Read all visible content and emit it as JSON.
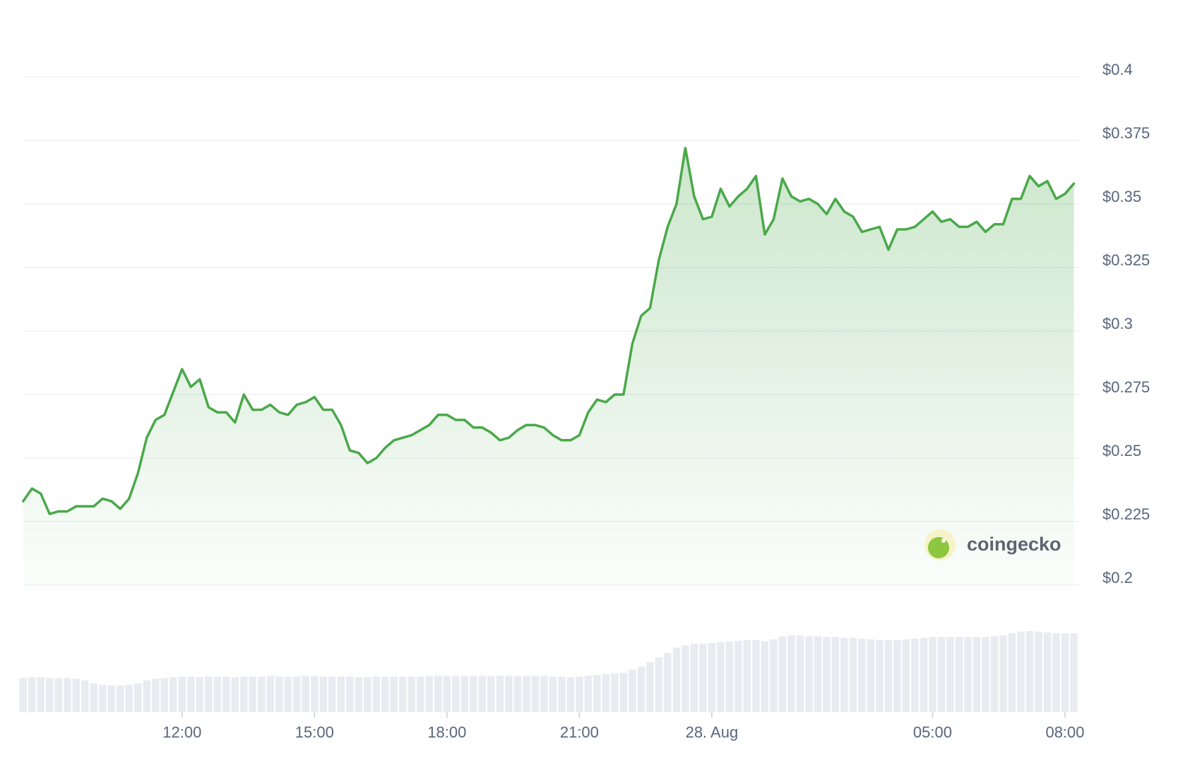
{
  "chart_data": {
    "type": "area-line",
    "color": "#4aa84a",
    "x": [
      8.4,
      8.6,
      8.8,
      9.0,
      9.2,
      9.4,
      9.6,
      9.8,
      10.0,
      10.2,
      10.4,
      10.6,
      10.8,
      11.0,
      11.2,
      11.4,
      11.6,
      11.8,
      12.0,
      12.2,
      12.4,
      12.6,
      12.8,
      13.0,
      13.2,
      13.4,
      13.6,
      13.8,
      14.0,
      14.2,
      14.4,
      14.6,
      14.8,
      15.0,
      15.2,
      15.4,
      15.6,
      15.8,
      16.0,
      16.2,
      16.4,
      16.6,
      16.8,
      17.0,
      17.2,
      17.4,
      17.6,
      17.8,
      18.0,
      18.2,
      18.4,
      18.6,
      18.8,
      19.0,
      19.2,
      19.4,
      19.6,
      19.8,
      20.0,
      20.2,
      20.4,
      20.6,
      20.8,
      21.0,
      21.2,
      21.4,
      21.6,
      21.8,
      22.0,
      22.2,
      22.4,
      22.6,
      22.8,
      23.0,
      23.2,
      23.4,
      23.6,
      23.8,
      24.0,
      24.2,
      24.4,
      24.6,
      24.8,
      25.0,
      25.2,
      25.4,
      25.6,
      25.8,
      26.0,
      26.2,
      26.4,
      26.6,
      26.8,
      27.0,
      27.2,
      27.4,
      27.6,
      27.8,
      28.0,
      28.2,
      28.4,
      28.6,
      28.8,
      29.0,
      29.2,
      29.4,
      29.6,
      29.8,
      30.0,
      30.2,
      30.4,
      30.6,
      30.8,
      31.0,
      31.2,
      31.4,
      31.6,
      31.8,
      32.0,
      32.2
    ],
    "values": [
      0.233,
      0.238,
      0.236,
      0.228,
      0.229,
      0.229,
      0.231,
      0.231,
      0.231,
      0.234,
      0.233,
      0.23,
      0.234,
      0.244,
      0.258,
      0.265,
      0.267,
      0.276,
      0.285,
      0.278,
      0.281,
      0.27,
      0.268,
      0.268,
      0.264,
      0.275,
      0.269,
      0.269,
      0.271,
      0.268,
      0.267,
      0.271,
      0.272,
      0.274,
      0.269,
      0.269,
      0.263,
      0.253,
      0.252,
      0.248,
      0.25,
      0.254,
      0.257,
      0.258,
      0.259,
      0.261,
      0.263,
      0.267,
      0.267,
      0.265,
      0.265,
      0.262,
      0.262,
      0.26,
      0.257,
      0.258,
      0.261,
      0.263,
      0.263,
      0.262,
      0.259,
      0.257,
      0.257,
      0.259,
      0.268,
      0.273,
      0.272,
      0.275,
      0.275,
      0.295,
      0.306,
      0.309,
      0.328,
      0.341,
      0.35,
      0.372,
      0.353,
      0.344,
      0.345,
      0.356,
      0.349,
      0.353,
      0.356,
      0.361,
      0.338,
      0.344,
      0.36,
      0.353,
      0.351,
      0.352,
      0.35,
      0.346,
      0.352,
      0.347,
      0.345,
      0.339,
      0.34,
      0.341,
      0.332,
      0.34,
      0.34,
      0.341,
      0.344,
      0.347,
      0.343,
      0.344,
      0.341,
      0.341,
      0.343,
      0.339,
      0.342,
      0.342,
      0.352,
      0.352,
      0.361,
      0.357,
      0.359,
      0.352,
      0.354,
      0.358
    ],
    "volume": [
      45,
      46,
      46,
      45,
      45,
      45,
      44,
      42,
      38,
      36,
      35,
      35,
      36,
      38,
      42,
      44,
      45,
      46,
      47,
      47,
      46,
      47,
      47,
      47,
      46,
      47,
      47,
      47,
      48,
      47,
      47,
      47,
      48,
      48,
      47,
      47,
      47,
      47,
      46,
      46,
      47,
      47,
      47,
      47,
      47,
      47,
      48,
      48,
      48,
      48,
      48,
      48,
      48,
      48,
      48,
      48,
      48,
      48,
      48,
      48,
      47,
      47,
      46,
      47,
      48,
      49,
      50,
      51,
      52,
      56,
      60,
      66,
      72,
      78,
      85,
      88,
      90,
      90,
      91,
      92,
      93,
      94,
      95,
      95,
      93,
      96,
      100,
      101,
      101,
      100,
      100,
      99,
      99,
      98,
      98,
      97,
      96,
      95,
      95,
      95,
      96,
      97,
      98,
      99,
      99,
      99,
      99,
      99,
      99,
      99,
      100,
      101,
      104,
      106,
      107,
      106,
      105,
      104,
      104,
      104
    ],
    "volume_color": "#e9ebf0",
    "xlim": [
      8.42,
      32.32
    ],
    "xticks": [
      {
        "value": 12,
        "label": "12:00"
      },
      {
        "value": 15,
        "label": "15:00"
      },
      {
        "value": 18,
        "label": "18:00"
      },
      {
        "value": 21,
        "label": "21:00"
      },
      {
        "value": 24,
        "label": "28. Aug"
      },
      {
        "value": 29,
        "label": "05:00"
      },
      {
        "value": 32,
        "label": "08:00"
      }
    ],
    "ylim": [
      0.2,
      0.4
    ],
    "yticks": [
      {
        "value": 0.2,
        "label": "$0.2"
      },
      {
        "value": 0.225,
        "label": "$0.225"
      },
      {
        "value": 0.25,
        "label": "$0.25"
      },
      {
        "value": 0.275,
        "label": "$0.275"
      },
      {
        "value": 0.3,
        "label": "$0.3"
      },
      {
        "value": 0.325,
        "label": "$0.325"
      },
      {
        "value": 0.35,
        "label": "$0.35"
      },
      {
        "value": 0.375,
        "label": "$0.375"
      },
      {
        "value": 0.4,
        "label": "$0.4"
      }
    ],
    "grid": true,
    "watermark": "coingecko"
  }
}
